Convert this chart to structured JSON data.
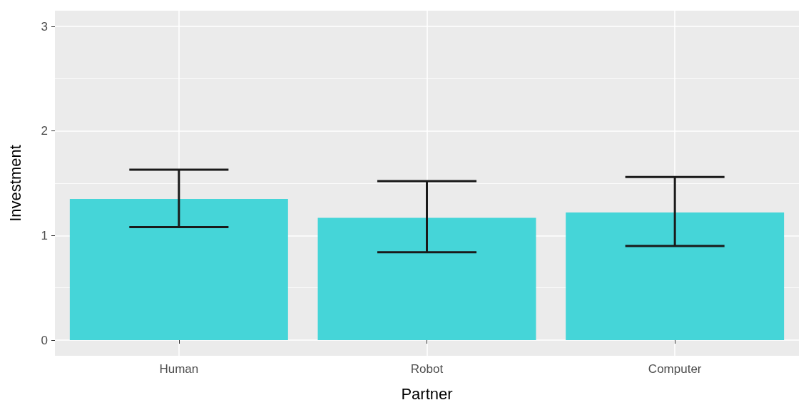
{
  "chart_data": {
    "type": "bar",
    "xlabel": "Partner",
    "ylabel": "Investment",
    "categories": [
      "Human",
      "Robot",
      "Computer"
    ],
    "values": [
      1.35,
      1.17,
      1.22
    ],
    "errors": [
      [
        1.08,
        1.63
      ],
      [
        0.84,
        1.52
      ],
      [
        0.9,
        1.56
      ]
    ],
    "color": "#45d5d8",
    "ylim": [
      -0.15,
      3.15
    ],
    "yticks": [
      0,
      1,
      2,
      3
    ],
    "grid": true
  }
}
